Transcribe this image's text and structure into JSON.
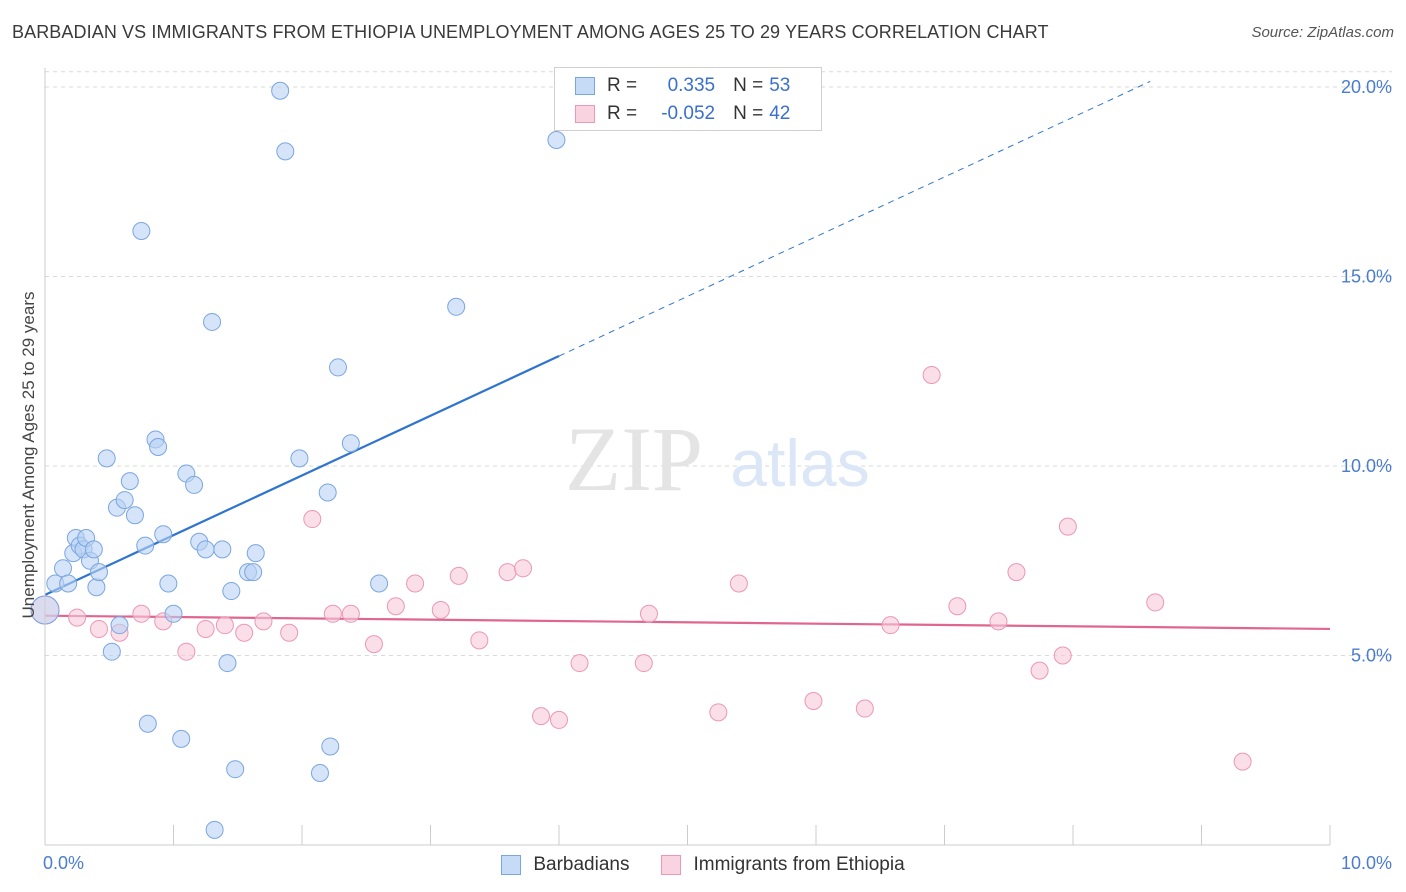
{
  "title": "BARBADIAN VS IMMIGRANTS FROM ETHIOPIA UNEMPLOYMENT AMONG AGES 25 TO 29 YEARS CORRELATION CHART",
  "source": "Source: ZipAtlas.com",
  "colors": {
    "blue_fill": "#b9d2f3",
    "blue_stroke": "#7aa6e0",
    "blue_line": "#2f74d0",
    "pink_fill": "#f8c9d8",
    "pink_stroke": "#ec97b3",
    "pink_line": "#e0668f",
    "grid": "#d9d9d9",
    "tick_text": "#4a7ccf"
  },
  "legend": {
    "rows": [
      {
        "r_label": "R =",
        "r_value": "0.335",
        "n_label": "N =",
        "n_value": "53"
      },
      {
        "r_label": "R =",
        "r_value": "-0.052",
        "n_label": "N =",
        "n_value": "42"
      }
    ]
  },
  "bottom_legend": [
    "Barbadians",
    "Immigrants from Ethiopia"
  ],
  "watermark": {
    "left": "ZIP",
    "right": "atlas"
  },
  "chart_data": {
    "type": "scatter",
    "xlabel": "",
    "ylabel": "Unemployment Among Ages 25 to 29 years",
    "xlim": [
      0,
      10
    ],
    "ylim": [
      0,
      20.5
    ],
    "x_tick_labels": [
      "0.0%",
      "10.0%"
    ],
    "y_ticks": [
      5,
      10,
      15,
      20
    ],
    "y_tick_labels": [
      "5.0%",
      "10.0%",
      "15.0%",
      "20.0%"
    ],
    "grid": true,
    "series": [
      {
        "name": "Barbadians",
        "r": 0.335,
        "n": 53,
        "trend": {
          "x0": 0.0,
          "y0": 6.6,
          "x1": 4.0,
          "y1": 12.9,
          "dash_to_x": 8.6
        },
        "points": [
          [
            0.0,
            6.2
          ],
          [
            0.08,
            6.9
          ],
          [
            0.14,
            7.3
          ],
          [
            0.18,
            6.9
          ],
          [
            0.22,
            7.7
          ],
          [
            0.24,
            8.1
          ],
          [
            0.27,
            7.9
          ],
          [
            0.3,
            7.8
          ],
          [
            0.32,
            8.1
          ],
          [
            0.35,
            7.5
          ],
          [
            0.38,
            7.8
          ],
          [
            0.4,
            6.8
          ],
          [
            0.42,
            7.2
          ],
          [
            0.48,
            10.2
          ],
          [
            0.52,
            5.1
          ],
          [
            0.56,
            8.9
          ],
          [
            0.58,
            5.8
          ],
          [
            0.62,
            9.1
          ],
          [
            0.66,
            9.6
          ],
          [
            0.7,
            8.7
          ],
          [
            0.75,
            16.2
          ],
          [
            0.78,
            7.9
          ],
          [
            0.8,
            3.2
          ],
          [
            0.86,
            10.7
          ],
          [
            0.88,
            10.5
          ],
          [
            0.92,
            8.2
          ],
          [
            0.96,
            6.9
          ],
          [
            1.0,
            6.1
          ],
          [
            1.06,
            2.8
          ],
          [
            1.1,
            9.8
          ],
          [
            1.16,
            9.5
          ],
          [
            1.2,
            8.0
          ],
          [
            1.25,
            7.8
          ],
          [
            1.3,
            13.8
          ],
          [
            1.32,
            0.4
          ],
          [
            1.38,
            7.8
          ],
          [
            1.42,
            4.8
          ],
          [
            1.45,
            6.7
          ],
          [
            1.48,
            2.0
          ],
          [
            1.58,
            7.2
          ],
          [
            1.62,
            7.2
          ],
          [
            1.64,
            7.7
          ],
          [
            1.83,
            19.9
          ],
          [
            1.87,
            18.3
          ],
          [
            1.98,
            10.2
          ],
          [
            2.14,
            1.9
          ],
          [
            2.2,
            9.3
          ],
          [
            2.22,
            2.6
          ],
          [
            2.28,
            12.6
          ],
          [
            2.38,
            10.6
          ],
          [
            2.6,
            6.9
          ],
          [
            3.2,
            14.2
          ],
          [
            3.98,
            18.6
          ]
        ]
      },
      {
        "name": "Immigrants from Ethiopia",
        "r": -0.052,
        "n": 42,
        "trend": {
          "x0": 0.0,
          "y0": 6.05,
          "x1": 10.0,
          "y1": 5.7
        },
        "points": [
          [
            0.0,
            6.2
          ],
          [
            0.25,
            6.0
          ],
          [
            0.42,
            5.7
          ],
          [
            0.58,
            5.6
          ],
          [
            0.75,
            6.1
          ],
          [
            0.92,
            5.9
          ],
          [
            1.1,
            5.1
          ],
          [
            1.25,
            5.7
          ],
          [
            1.4,
            5.8
          ],
          [
            1.55,
            5.6
          ],
          [
            1.7,
            5.9
          ],
          [
            1.9,
            5.6
          ],
          [
            2.08,
            8.6
          ],
          [
            2.24,
            6.1
          ],
          [
            2.38,
            6.1
          ],
          [
            2.56,
            5.3
          ],
          [
            2.73,
            6.3
          ],
          [
            2.88,
            6.9
          ],
          [
            3.08,
            6.2
          ],
          [
            3.22,
            7.1
          ],
          [
            3.38,
            5.4
          ],
          [
            3.6,
            7.2
          ],
          [
            3.72,
            7.3
          ],
          [
            3.86,
            3.4
          ],
          [
            4.0,
            3.3
          ],
          [
            4.16,
            4.8
          ],
          [
            4.66,
            4.8
          ],
          [
            4.7,
            6.1
          ],
          [
            5.24,
            3.5
          ],
          [
            5.4,
            6.9
          ],
          [
            5.98,
            3.8
          ],
          [
            6.38,
            3.6
          ],
          [
            6.58,
            5.8
          ],
          [
            6.9,
            12.4
          ],
          [
            7.1,
            6.3
          ],
          [
            7.42,
            5.9
          ],
          [
            7.56,
            7.2
          ],
          [
            7.74,
            4.6
          ],
          [
            7.92,
            5.0
          ],
          [
            7.96,
            8.4
          ],
          [
            8.64,
            6.4
          ],
          [
            9.32,
            2.2
          ]
        ]
      }
    ]
  }
}
